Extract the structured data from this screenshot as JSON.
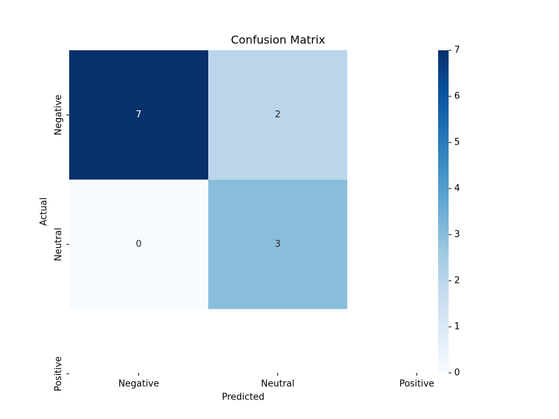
{
  "chart_data": {
    "type": "heatmap",
    "title": "Confusion Matrix",
    "x_label": "Predicted",
    "y_label": "Actual",
    "x_categories": [
      "Negative",
      "Neutral",
      "Positive"
    ],
    "y_categories": [
      "Negative",
      "Neutral",
      "Positive"
    ],
    "values": [
      [
        7,
        2,
        null
      ],
      [
        0,
        3,
        null
      ],
      [
        null,
        null,
        null
      ]
    ],
    "colormap": "Blues",
    "clim": [
      0,
      7
    ],
    "colorbar_ticks": [
      0,
      1,
      2,
      3,
      4,
      5,
      6,
      7
    ]
  }
}
